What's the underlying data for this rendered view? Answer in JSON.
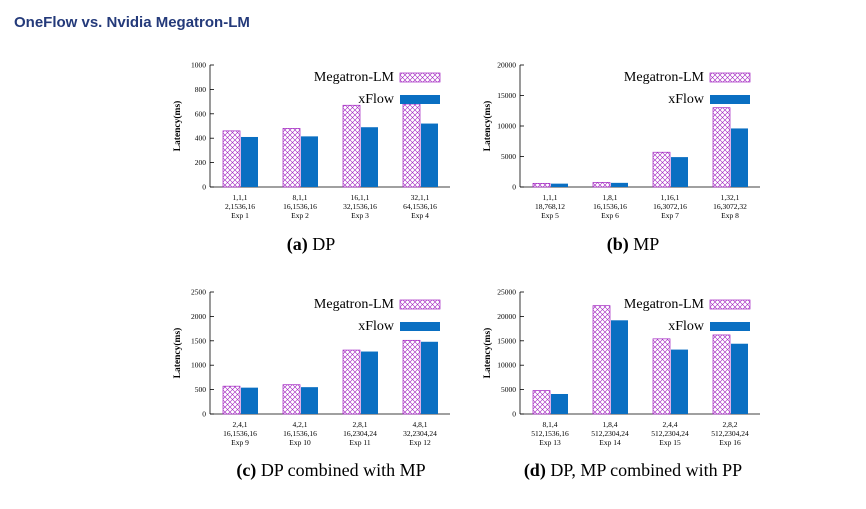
{
  "page": {
    "title": "OneFlow vs. Nvidia Megatron-LM"
  },
  "colors": {
    "megatron_edge": "#a020c0",
    "xflow_fill": "#0a6fc2",
    "title": "#243a7a"
  },
  "chart_data": [
    {
      "type": "bar",
      "caption_tag": "(a)",
      "caption": "DP",
      "ylabel": "Latency(ms)",
      "ylim": [
        0,
        1000
      ],
      "yticks": [
        "0",
        "200",
        "400",
        "600",
        "800",
        "1000"
      ],
      "categories": [
        {
          "l1": "1,1,1",
          "l2": "2,1536,16",
          "l3": "Exp 1"
        },
        {
          "l1": "8,1,1",
          "l2": "16,1536,16",
          "l3": "Exp 2"
        },
        {
          "l1": "16,1,1",
          "l2": "32,1536,16",
          "l3": "Exp 3"
        },
        {
          "l1": "32,1,1",
          "l2": "64,1536,16",
          "l3": "Exp 4"
        }
      ],
      "series": [
        {
          "name": "Megatron-LM",
          "style": "hatched",
          "values": [
            460,
            480,
            670,
            680
          ]
        },
        {
          "name": "xFlow",
          "style": "solid",
          "values": [
            410,
            415,
            490,
            520
          ]
        }
      ]
    },
    {
      "type": "bar",
      "caption_tag": "(b)",
      "caption": "MP",
      "ylabel": "Latency(ms)",
      "ylim": [
        0,
        20000
      ],
      "yticks": [
        "0",
        "5000",
        "10000",
        "15000",
        "20000"
      ],
      "categories": [
        {
          "l1": "1,1,1",
          "l2": "18,768,12",
          "l3": "Exp 5"
        },
        {
          "l1": "1,8,1",
          "l2": "16,1536,16",
          "l3": "Exp 6"
        },
        {
          "l1": "1,16,1",
          "l2": "16,3072,16",
          "l3": "Exp 7"
        },
        {
          "l1": "1,32,1",
          "l2": "16,3072,32",
          "l3": "Exp 8"
        }
      ],
      "series": [
        {
          "name": "Megatron-LM",
          "style": "hatched",
          "values": [
            600,
            750,
            5700,
            13000
          ]
        },
        {
          "name": "xFlow",
          "style": "solid",
          "values": [
            550,
            680,
            4900,
            9600
          ]
        }
      ]
    },
    {
      "type": "bar",
      "caption_tag": "(c)",
      "caption": "DP combined with MP",
      "ylabel": "Latency(ms)",
      "ylim": [
        0,
        2500
      ],
      "yticks": [
        "0",
        "500",
        "1000",
        "1500",
        "2000",
        "2500"
      ],
      "categories": [
        {
          "l1": "2,4,1",
          "l2": "16,1536,16",
          "l3": "Exp 9"
        },
        {
          "l1": "4,2,1",
          "l2": "16,1536,16",
          "l3": "Exp 10"
        },
        {
          "l1": "2,8,1",
          "l2": "16,2304,24",
          "l3": "Exp 11"
        },
        {
          "l1": "4,8,1",
          "l2": "32,2304,24",
          "l3": "Exp 12"
        }
      ],
      "series": [
        {
          "name": "Megatron-LM",
          "style": "hatched",
          "values": [
            570,
            600,
            1310,
            1510
          ]
        },
        {
          "name": "xFlow",
          "style": "solid",
          "values": [
            540,
            550,
            1280,
            1480
          ]
        }
      ]
    },
    {
      "type": "bar",
      "caption_tag": "(d)",
      "caption": "DP, MP combined with PP",
      "ylabel": "Latency(ms)",
      "ylim": [
        0,
        25000
      ],
      "yticks": [
        "0",
        "5000",
        "10000",
        "15000",
        "20000",
        "25000"
      ],
      "categories": [
        {
          "l1": "8,1,4",
          "l2": "512,1536,16",
          "l3": "Exp 13"
        },
        {
          "l1": "1,8,4",
          "l2": "512,2304,24",
          "l3": "Exp 14"
        },
        {
          "l1": "2,4,4",
          "l2": "512,2304,24",
          "l3": "Exp 15"
        },
        {
          "l1": "2,8,2",
          "l2": "512,2304,24",
          "l3": "Exp 16"
        }
      ],
      "series": [
        {
          "name": "Megatron-LM",
          "style": "hatched",
          "values": [
            4800,
            22200,
            15400,
            16200
          ]
        },
        {
          "name": "xFlow",
          "style": "solid",
          "values": [
            4100,
            19200,
            13200,
            14400
          ]
        }
      ]
    }
  ]
}
